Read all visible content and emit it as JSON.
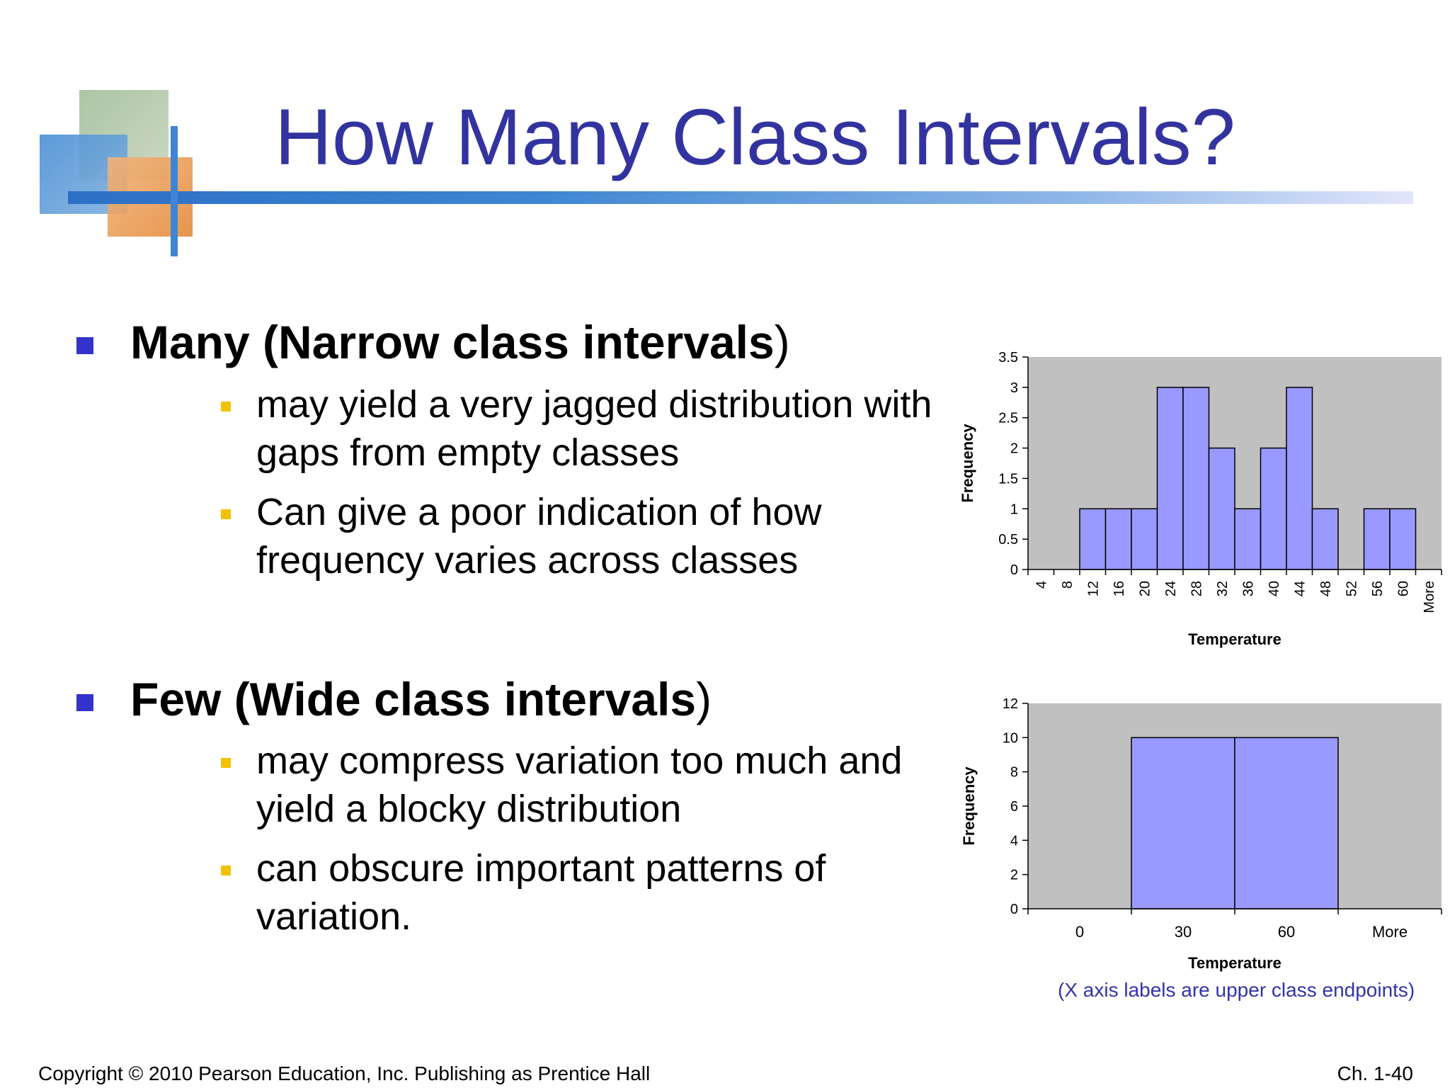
{
  "title": "How Many Class Intervals?",
  "sections": [
    {
      "heading_bold": "Many (Narrow class intervals",
      "heading_close": ")",
      "bullets": [
        "may yield a very jagged distribution with gaps from empty classes",
        "Can give a poor indication of how frequency varies across classes"
      ]
    },
    {
      "heading_bold": "Few (Wide class intervals",
      "heading_close": ")",
      "bullets": [
        "may compress variation too much and yield a blocky distribution",
        "can obscure important patterns of variation."
      ]
    }
  ],
  "chart_data": [
    {
      "type": "bar",
      "categories": [
        "4",
        "8",
        "12",
        "16",
        "20",
        "24",
        "28",
        "32",
        "36",
        "40",
        "44",
        "48",
        "52",
        "56",
        "60",
        "More"
      ],
      "values": [
        0,
        0,
        1,
        1,
        1,
        3,
        3,
        2,
        1,
        2,
        3,
        1,
        0,
        1,
        1,
        0
      ],
      "xlabel": "Temperature",
      "ylabel": "Frequency",
      "ylim": [
        0,
        3.5
      ],
      "yticks": [
        "0",
        "0.5",
        "1",
        "1.5",
        "2",
        "2.5",
        "3",
        "3.5"
      ],
      "grid": false
    },
    {
      "type": "bar",
      "categories": [
        "0",
        "30",
        "60",
        "More"
      ],
      "values": [
        0,
        10,
        10,
        0
      ],
      "xlabel": "Temperature",
      "ylabel": "Frequency",
      "ylim": [
        0,
        12
      ],
      "yticks": [
        "0",
        "2",
        "4",
        "6",
        "8",
        "10",
        "12"
      ],
      "grid": false
    }
  ],
  "chart_note": "(X axis labels are upper class endpoints)",
  "footer": {
    "copyright": "Copyright © 2010 Pearson Education, Inc. Publishing as Prentice Hall",
    "page": "Ch. 1-40"
  },
  "colors": {
    "title": "#3333a0",
    "bar_fill": "#9999ff",
    "plot_bg": "#c0c0c0",
    "main_bullet": "#3333cc",
    "sub_bullet": "#f2c200"
  }
}
